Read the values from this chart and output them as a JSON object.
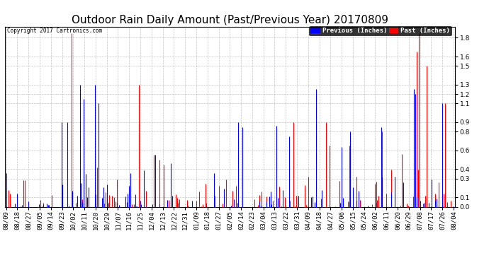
{
  "title": "Outdoor Rain Daily Amount (Past/Previous Year) 20170809",
  "copyright_text": "Copyright 2017 Cartronics.com",
  "legend_previous": "Previous (Inches)",
  "legend_past": "Past (Inches)",
  "legend_prev_bg": "#0000ff",
  "legend_past_bg": "#ff0000",
  "color_previous": "#0000ff",
  "color_past": "#ff0000",
  "background_color": "#ffffff",
  "grid_color": "#aaaaaa",
  "yticks": [
    0.0,
    0.1,
    0.3,
    0.4,
    0.6,
    0.8,
    0.9,
    1.1,
    1.2,
    1.3,
    1.5,
    1.6,
    1.8
  ],
  "ylim": [
    0.0,
    1.92
  ],
  "x_labels": [
    "08/09",
    "08/18",
    "08/27",
    "09/05",
    "09/14",
    "09/23",
    "10/02",
    "10/11",
    "10/20",
    "10/29",
    "11/07",
    "11/16",
    "11/25",
    "12/04",
    "12/13",
    "12/22",
    "12/31",
    "01/09",
    "01/18",
    "01/27",
    "02/05",
    "02/14",
    "02/23",
    "03/04",
    "03/13",
    "03/22",
    "03/31",
    "04/09",
    "04/18",
    "04/27",
    "05/06",
    "05/15",
    "05/24",
    "06/02",
    "06/11",
    "06/20",
    "06/29",
    "07/08",
    "07/17",
    "07/26",
    "08/04"
  ],
  "title_fontsize": 11,
  "axis_fontsize": 6.5,
  "n_days": 365
}
